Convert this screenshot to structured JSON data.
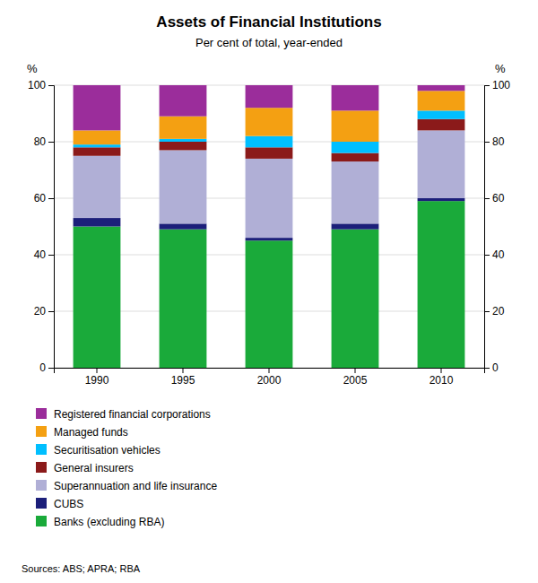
{
  "chart_data": {
    "type": "bar",
    "stacked": true,
    "title": "Assets of Financial Institutions",
    "subtitle": "Per cent of total, year-ended",
    "categories": [
      "1990",
      "1995",
      "2000",
      "2005",
      "2010"
    ],
    "series": [
      {
        "name": "Banks (excluding RBA)",
        "color": "#1aaa3a",
        "values": [
          50,
          49,
          45,
          49,
          59
        ]
      },
      {
        "name": "CUBS",
        "color": "#1c1f7a",
        "values": [
          3,
          2,
          1,
          2,
          1
        ]
      },
      {
        "name": "Superannuation and life insurance",
        "color": "#b0afd6",
        "values": [
          22,
          26,
          28,
          22,
          24
        ]
      },
      {
        "name": "General insurers",
        "color": "#8b1a1a",
        "values": [
          3,
          3,
          4,
          3,
          4
        ]
      },
      {
        "name": "Securitisation vehicles",
        "color": "#00bfff",
        "values": [
          1,
          1,
          4,
          4,
          3
        ]
      },
      {
        "name": "Managed funds",
        "color": "#f4a012",
        "values": [
          5,
          8,
          10,
          11,
          7
        ]
      },
      {
        "name": "Registered financial corporations",
        "color": "#9b2d9b",
        "values": [
          16,
          11,
          8,
          9,
          2
        ]
      }
    ],
    "ylim": [
      0,
      100
    ],
    "yticks": [
      0,
      20,
      40,
      60,
      80,
      100
    ],
    "y2lim": [
      0,
      100
    ],
    "y2ticks": [
      0,
      20,
      40,
      60,
      80,
      100
    ],
    "ylabel": "%",
    "y2label": "%",
    "grid": true,
    "legend": "bottom",
    "source": "Sources: ABS; APRA; RBA"
  }
}
